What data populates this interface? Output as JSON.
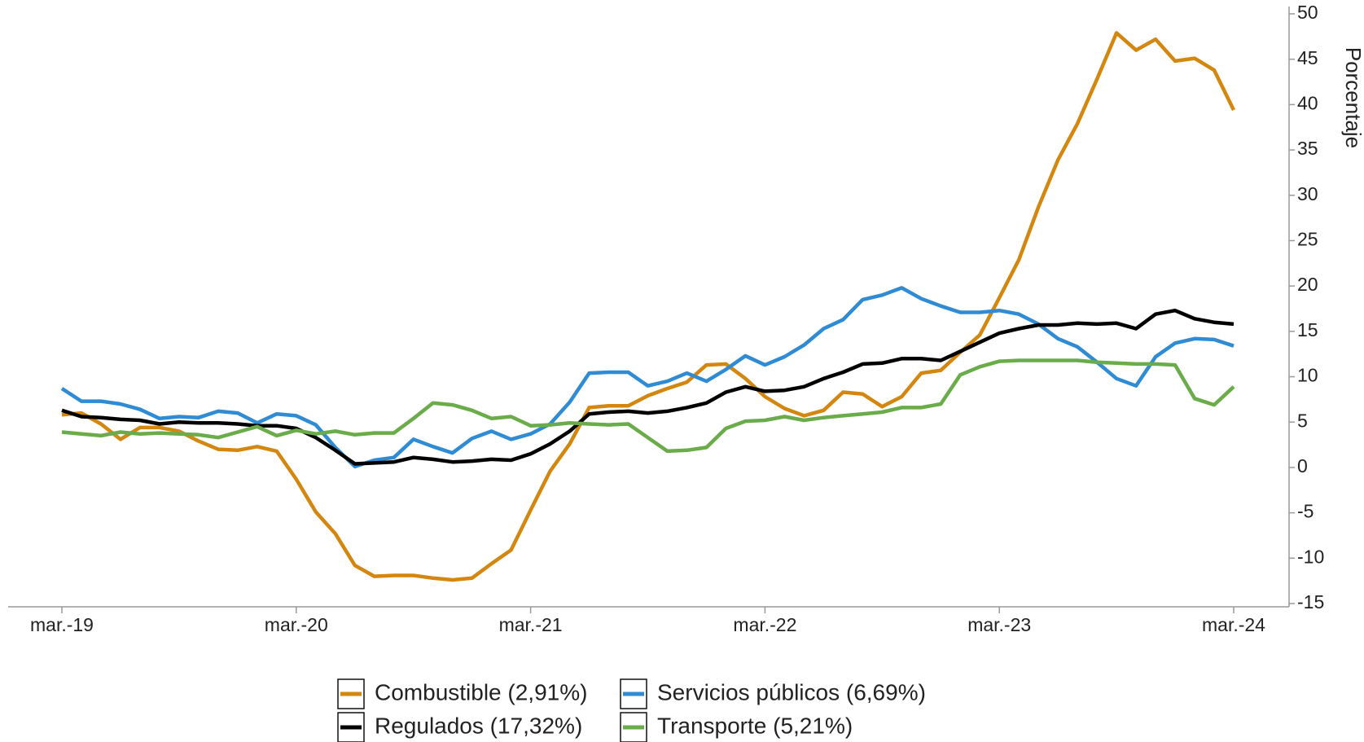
{
  "chart_data": {
    "type": "line",
    "y_label": "Porcentaje",
    "categories": [
      "mar.-19",
      null,
      null,
      null,
      null,
      null,
      null,
      null,
      null,
      null,
      null,
      null,
      "mar.-20",
      null,
      null,
      null,
      null,
      null,
      null,
      null,
      null,
      null,
      null,
      null,
      "mar.-21",
      null,
      null,
      null,
      null,
      null,
      null,
      null,
      null,
      null,
      null,
      null,
      "mar.-22",
      null,
      null,
      null,
      null,
      null,
      null,
      null,
      null,
      null,
      null,
      null,
      "mar.-23",
      null,
      null,
      null,
      null,
      null,
      null,
      null,
      null,
      null,
      null,
      null,
      "mar.-24"
    ],
    "ylim": [
      -15,
      50
    ],
    "yticks": [
      -15,
      -10,
      -5,
      0,
      5,
      10,
      15,
      20,
      25,
      30,
      35,
      40,
      45,
      50
    ],
    "y_axis_side": "right",
    "series": [
      {
        "name": "Combustible (2,91%)",
        "color": "#d4870f",
        "values": [
          5.8,
          6.0,
          4.8,
          3.1,
          4.4,
          4.4,
          4.0,
          2.9,
          2.0,
          1.9,
          2.3,
          1.8,
          -1.3,
          -4.9,
          -7.3,
          -10.8,
          -12.0,
          -11.9,
          -11.9,
          -12.2,
          -12.4,
          -12.2,
          -10.6,
          -9.1,
          -4.7,
          -0.4,
          2.6,
          6.6,
          6.8,
          6.8,
          7.9,
          8.7,
          9.4,
          11.3,
          11.4,
          9.8,
          7.8,
          6.5,
          5.7,
          6.3,
          8.3,
          8.1,
          6.7,
          7.8,
          10.4,
          10.7,
          12.7,
          14.6,
          18.7,
          22.9,
          28.7,
          33.9,
          37.9,
          42.8,
          47.9,
          46.0,
          47.2,
          44.8,
          45.1,
          43.8,
          39.4
        ]
      },
      {
        "name": "Servicios públicos (6,69%)",
        "color": "#2e8bd4",
        "values": [
          8.7,
          7.3,
          7.3,
          7.0,
          6.4,
          5.4,
          5.6,
          5.5,
          6.2,
          6.0,
          4.9,
          5.9,
          5.7,
          4.7,
          2.2,
          0.1,
          0.8,
          1.1,
          3.1,
          2.3,
          1.6,
          3.2,
          4.0,
          3.1,
          3.7,
          4.8,
          7.2,
          10.4,
          10.5,
          10.5,
          9.0,
          9.5,
          10.4,
          9.5,
          10.8,
          12.3,
          11.3,
          12.2,
          13.5,
          15.3,
          16.3,
          18.5,
          19.0,
          19.8,
          18.6,
          17.8,
          17.1,
          17.1,
          17.3,
          16.9,
          15.8,
          14.2,
          13.3,
          11.6,
          9.8,
          9.0,
          12.2,
          13.7,
          14.2,
          14.1,
          13.4
        ]
      },
      {
        "name": "Regulados (17,32%)",
        "color": "#000000",
        "values": [
          6.3,
          5.6,
          5.5,
          5.3,
          5.2,
          4.8,
          5.0,
          4.9,
          4.9,
          4.8,
          4.6,
          4.6,
          4.3,
          3.3,
          1.9,
          0.4,
          0.5,
          0.6,
          1.1,
          0.9,
          0.6,
          0.7,
          0.9,
          0.8,
          1.5,
          2.6,
          4.0,
          5.9,
          6.1,
          6.2,
          6.0,
          6.2,
          6.6,
          7.1,
          8.3,
          8.9,
          8.4,
          8.5,
          8.9,
          9.8,
          10.5,
          11.4,
          11.5,
          12.0,
          12.0,
          11.8,
          12.8,
          13.8,
          14.8,
          15.3,
          15.7,
          15.7,
          15.9,
          15.8,
          15.9,
          15.3,
          16.9,
          17.3,
          16.4,
          16.0,
          15.8
        ]
      },
      {
        "name": "Transporte (5,21%)",
        "color": "#6aab4a",
        "values": [
          3.9,
          3.7,
          3.5,
          3.9,
          3.7,
          3.8,
          3.7,
          3.6,
          3.3,
          3.9,
          4.5,
          3.5,
          4.1,
          3.7,
          4.0,
          3.6,
          3.8,
          3.8,
          5.4,
          7.1,
          6.9,
          6.3,
          5.4,
          5.6,
          4.6,
          4.7,
          4.9,
          4.8,
          4.7,
          4.8,
          3.3,
          1.8,
          1.9,
          2.2,
          4.3,
          5.1,
          5.2,
          5.6,
          5.2,
          5.5,
          5.7,
          5.9,
          6.1,
          6.6,
          6.6,
          7.0,
          10.2,
          11.1,
          11.7,
          11.8,
          11.8,
          11.8,
          11.8,
          11.6,
          11.5,
          11.4,
          11.4,
          11.3,
          7.6,
          6.9,
          8.9
        ]
      }
    ]
  }
}
